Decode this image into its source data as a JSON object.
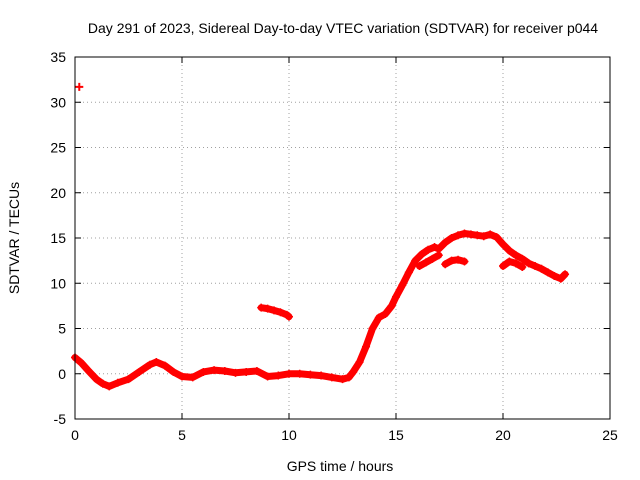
{
  "chart_data": {
    "type": "scatter",
    "title": "Day 291 of 2023, Sidereal Day-to-day VTEC variation (SDTVAR) for receiver p044",
    "xlabel": "GPS time / hours",
    "ylabel": "SDTVAR / TECUs",
    "xlim": [
      0,
      25
    ],
    "ylim": [
      -5,
      35
    ],
    "xticks": [
      0,
      5,
      10,
      15,
      20,
      25
    ],
    "yticks": [
      -5,
      0,
      5,
      10,
      15,
      20,
      25,
      30,
      35
    ],
    "grid": true,
    "marker": "+",
    "series": [
      {
        "name": "SDTVAR",
        "color": "#ff0000",
        "main_trace": [
          [
            0.0,
            1.8
          ],
          [
            0.3,
            1.2
          ],
          [
            0.6,
            0.4
          ],
          [
            1.0,
            -0.6
          ],
          [
            1.3,
            -1.1
          ],
          [
            1.6,
            -1.4
          ],
          [
            2.0,
            -1.0
          ],
          [
            2.5,
            -0.6
          ],
          [
            3.0,
            0.2
          ],
          [
            3.5,
            1.0
          ],
          [
            3.8,
            1.3
          ],
          [
            4.2,
            0.9
          ],
          [
            4.6,
            0.2
          ],
          [
            5.0,
            -0.3
          ],
          [
            5.5,
            -0.4
          ],
          [
            6.0,
            0.2
          ],
          [
            6.5,
            0.4
          ],
          [
            7.0,
            0.3
          ],
          [
            7.5,
            0.1
          ],
          [
            8.0,
            0.2
          ],
          [
            8.5,
            0.3
          ],
          [
            9.0,
            -0.3
          ],
          [
            9.5,
            -0.2
          ],
          [
            10.0,
            0.0
          ],
          [
            10.5,
            0.0
          ],
          [
            11.0,
            -0.1
          ],
          [
            11.5,
            -0.2
          ],
          [
            12.0,
            -0.4
          ],
          [
            12.5,
            -0.6
          ],
          [
            12.8,
            -0.4
          ],
          [
            13.0,
            0.2
          ],
          [
            13.3,
            1.3
          ],
          [
            13.6,
            3.0
          ],
          [
            13.9,
            5.0
          ],
          [
            14.2,
            6.2
          ],
          [
            14.5,
            6.6
          ],
          [
            14.8,
            7.5
          ],
          [
            15.0,
            8.5
          ],
          [
            15.3,
            9.8
          ],
          [
            15.6,
            11.2
          ],
          [
            15.9,
            12.5
          ],
          [
            16.2,
            13.2
          ],
          [
            16.5,
            13.7
          ],
          [
            16.8,
            14.0
          ],
          [
            17.0,
            13.8
          ],
          [
            17.3,
            14.5
          ],
          [
            17.6,
            15.0
          ],
          [
            17.9,
            15.3
          ],
          [
            18.2,
            15.5
          ],
          [
            18.5,
            15.4
          ],
          [
            18.8,
            15.3
          ],
          [
            19.1,
            15.2
          ],
          [
            19.4,
            15.4
          ],
          [
            19.7,
            15.1
          ],
          [
            20.0,
            14.3
          ],
          [
            20.3,
            13.6
          ],
          [
            20.6,
            13.1
          ],
          [
            20.9,
            12.7
          ],
          [
            21.2,
            12.2
          ],
          [
            21.5,
            11.9
          ],
          [
            21.8,
            11.6
          ],
          [
            22.1,
            11.2
          ],
          [
            22.4,
            10.8
          ],
          [
            22.7,
            10.5
          ],
          [
            22.9,
            11.0
          ]
        ],
        "fragments": [
          [
            [
              8.7,
              7.3
            ],
            [
              9.0,
              7.2
            ],
            [
              9.3,
              7.0
            ],
            [
              9.6,
              6.8
            ],
            [
              9.9,
              6.5
            ],
            [
              10.0,
              6.3
            ]
          ],
          [
            [
              16.1,
              11.9
            ],
            [
              16.4,
              12.3
            ],
            [
              16.7,
              12.7
            ],
            [
              17.0,
              13.1
            ]
          ],
          [
            [
              17.3,
              12.1
            ],
            [
              17.6,
              12.5
            ],
            [
              17.9,
              12.6
            ],
            [
              18.2,
              12.4
            ]
          ],
          [
            [
              20.0,
              11.9
            ],
            [
              20.3,
              12.4
            ],
            [
              20.6,
              12.2
            ],
            [
              20.9,
              11.8
            ]
          ]
        ],
        "outlier": [
          0.2,
          31.7
        ]
      }
    ]
  }
}
